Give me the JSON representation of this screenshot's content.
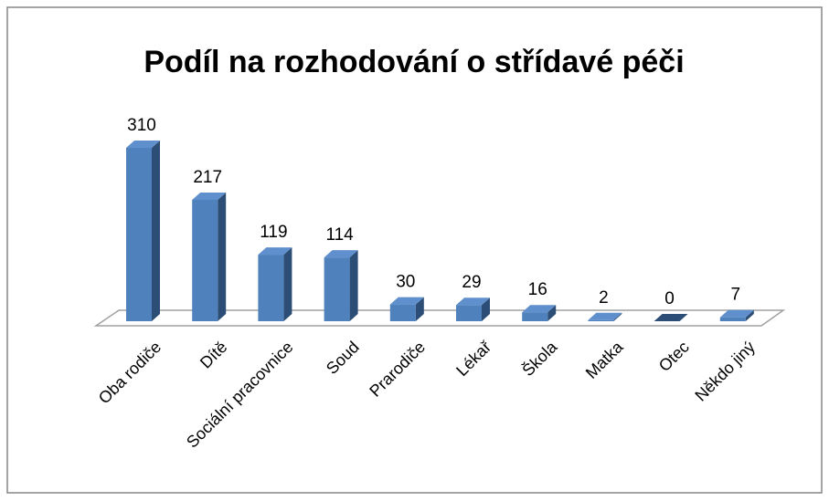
{
  "chart_data": {
    "type": "bar3d",
    "title": "Podíl na rozhodování o střídavé péči",
    "categories": [
      "Oba rodiče",
      "Dítě",
      "Sociální pracovnice",
      "Soud",
      "Prarodiče",
      "Lékař",
      "Škola",
      "Matka",
      "Otec",
      "Někdo jiný"
    ],
    "values": [
      310,
      217,
      119,
      114,
      30,
      29,
      16,
      2,
      0,
      7
    ],
    "color": "#4f81bd"
  }
}
